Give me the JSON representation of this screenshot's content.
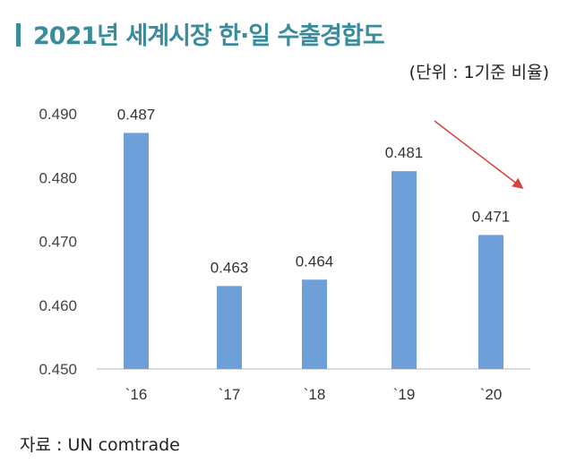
{
  "chart_data": {
    "type": "bar",
    "title": "2021년 세계시장 한·일 수출경합도",
    "unit": "(단위 : 1기준 비율)",
    "categories": [
      "`16",
      "`17",
      "`18",
      "`19",
      "`20"
    ],
    "values": [
      0.487,
      0.463,
      0.464,
      0.481,
      0.471
    ],
    "data_labels": [
      "0.487",
      "0.463",
      "0.464",
      "0.481",
      "0.471"
    ],
    "ylim": [
      0.45,
      0.49
    ],
    "yticks": [
      "0.450",
      "0.460",
      "0.470",
      "0.480",
      "0.490"
    ],
    "grid": false,
    "annotation": "downward-trend-arrow",
    "source": "자료 : UN comtrade"
  },
  "colors": {
    "bar": "#6f9fd8",
    "title": "#3b8c9a",
    "arrow": "#d94040"
  }
}
